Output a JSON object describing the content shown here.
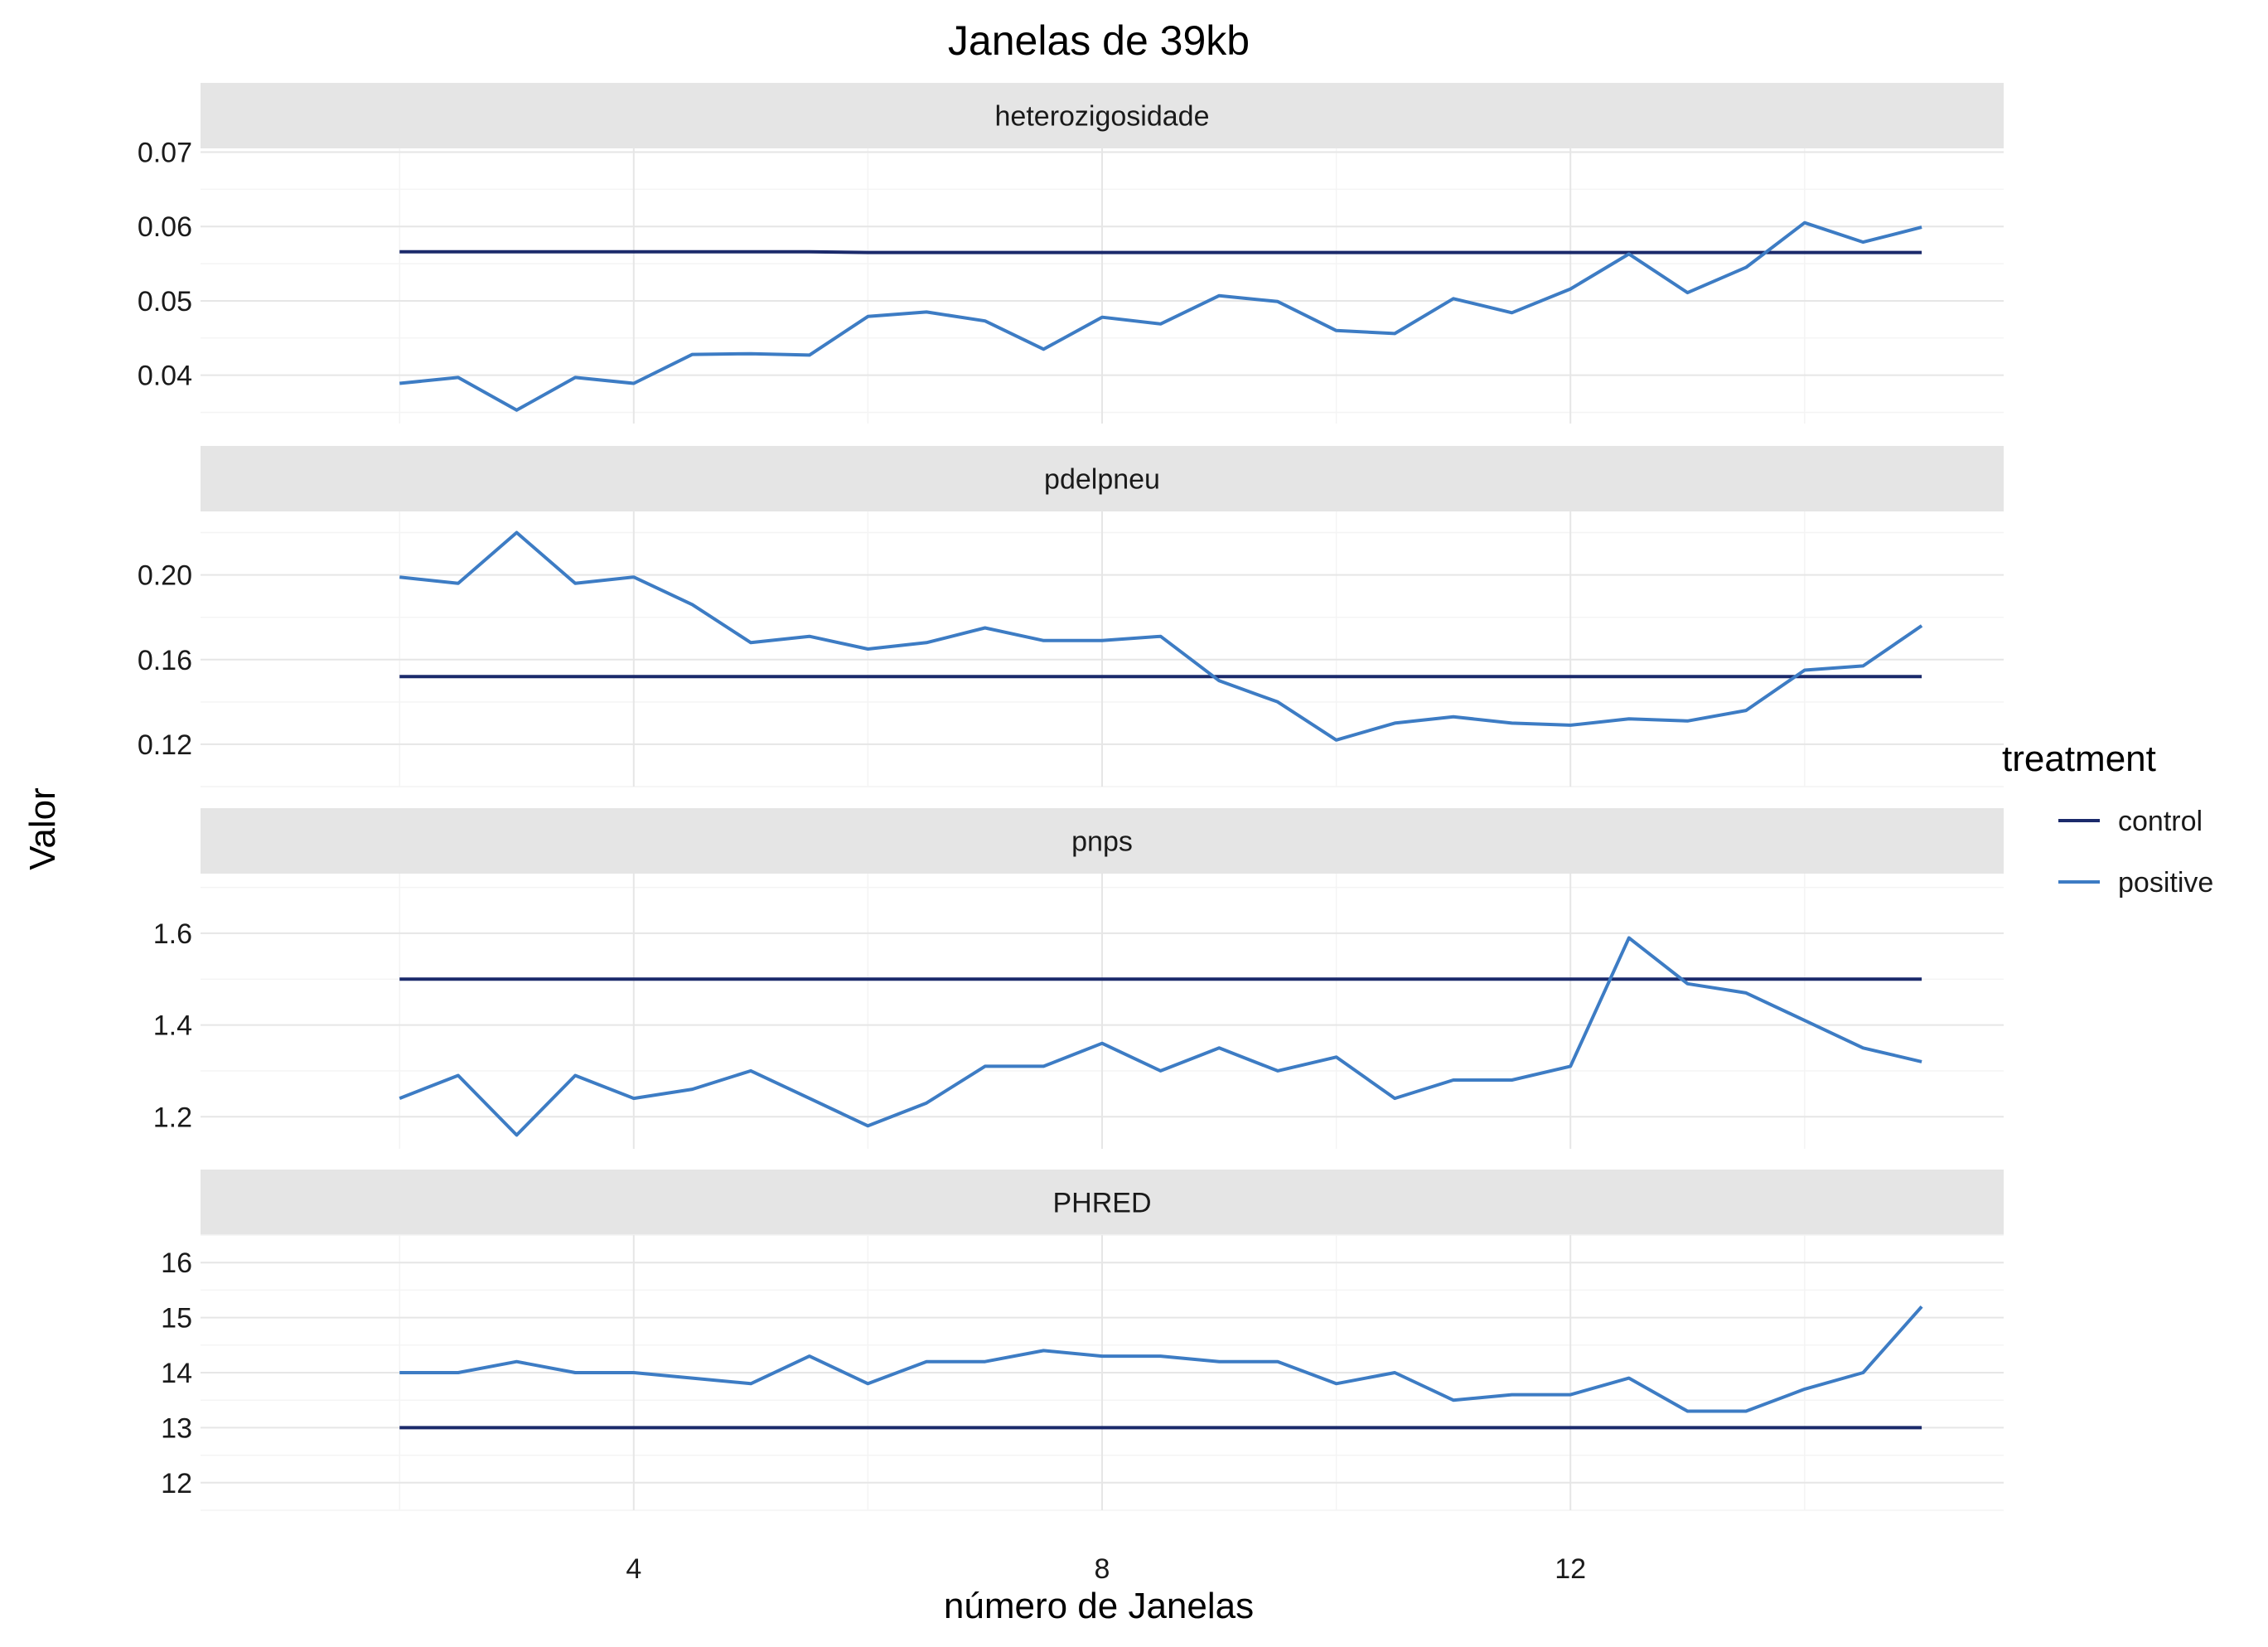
{
  "chart_data": {
    "type": "line",
    "title": "Janelas de 39kb",
    "xlabel": "número de Janelas",
    "ylabel": "Valor",
    "xlim": [
      0.3,
      15.7
    ],
    "xticks": [
      4,
      8,
      12
    ],
    "legend": {
      "title": "treatment",
      "position": "right",
      "entries": [
        {
          "label": "control",
          "color": "#1b2a6b"
        },
        {
          "label": "positive",
          "color": "#3d7cc4"
        }
      ]
    },
    "x": [
      2,
      2.5,
      3,
      3.5,
      4,
      4.5,
      5,
      5.5,
      6,
      6.5,
      7,
      7.5,
      8,
      8.5,
      9,
      9.5,
      10,
      10.5,
      11,
      11.5,
      12,
      12.5,
      13,
      13.5,
      14,
      14.5,
      15
    ],
    "panels": [
      {
        "strip": "heterozigosidade",
        "ylim": [
          0.0335,
          0.0705
        ],
        "yticks": [
          0.04,
          0.05,
          0.06,
          0.07
        ],
        "ytick_labels": [
          "0.04",
          "0.05",
          "0.06",
          "0.07"
        ],
        "series": [
          {
            "name": "control",
            "values": [
              0.0566,
              0.0566,
              0.0566,
              0.0566,
              0.0566,
              0.0566,
              0.0566,
              0.0566,
              0.0565,
              0.0565,
              0.0565,
              0.0565,
              0.0565,
              0.0565,
              0.0565,
              0.0565,
              0.0565,
              0.0565,
              0.0565,
              0.0565,
              0.0565,
              0.0565,
              0.0565,
              0.0565,
              0.0565,
              0.0565,
              0.0565
            ]
          },
          {
            "name": "positive",
            "values": [
              0.0389,
              0.0397,
              0.0353,
              0.0397,
              0.0389,
              0.0428,
              0.0429,
              0.0427,
              0.0479,
              0.0485,
              0.0473,
              0.0435,
              0.0478,
              0.0469,
              0.0507,
              0.0499,
              0.046,
              0.0456,
              0.0503,
              0.0484,
              0.0516,
              0.0563,
              0.0511,
              0.0545,
              0.0605,
              0.0579,
              0.0599
            ]
          }
        ]
      },
      {
        "strip": "pdelpneu",
        "ylim": [
          0.1,
          0.23
        ],
        "yticks": [
          0.12,
          0.16,
          0.2
        ],
        "ytick_labels": [
          "0.12",
          "0.16",
          "0.20"
        ],
        "series": [
          {
            "name": "control",
            "values": [
              0.152,
              0.152,
              0.152,
              0.152,
              0.152,
              0.152,
              0.152,
              0.152,
              0.152,
              0.152,
              0.152,
              0.152,
              0.152,
              0.152,
              0.152,
              0.152,
              0.152,
              0.152,
              0.152,
              0.152,
              0.152,
              0.152,
              0.152,
              0.152,
              0.152,
              0.152,
              0.152
            ]
          },
          {
            "name": "positive",
            "values": [
              0.199,
              0.196,
              0.22,
              0.196,
              0.199,
              0.186,
              0.168,
              0.171,
              0.165,
              0.168,
              0.175,
              0.169,
              0.169,
              0.171,
              0.15,
              0.14,
              0.122,
              0.13,
              0.133,
              0.13,
              0.129,
              0.132,
              0.131,
              0.136,
              0.155,
              0.157,
              0.176
            ]
          }
        ]
      },
      {
        "strip": "pnps",
        "ylim": [
          1.13,
          1.73
        ],
        "yticks": [
          1.2,
          1.4,
          1.6
        ],
        "ytick_labels": [
          "1.2",
          "1.4",
          "1.6"
        ],
        "series": [
          {
            "name": "control",
            "values": [
              1.5,
              1.5,
              1.5,
              1.5,
              1.5,
              1.5,
              1.5,
              1.5,
              1.5,
              1.5,
              1.5,
              1.5,
              1.5,
              1.5,
              1.5,
              1.5,
              1.5,
              1.5,
              1.5,
              1.5,
              1.5,
              1.5,
              1.5,
              1.5,
              1.5,
              1.5,
              1.5
            ]
          },
          {
            "name": "positive",
            "values": [
              1.24,
              1.29,
              1.16,
              1.29,
              1.24,
              1.26,
              1.3,
              1.24,
              1.18,
              1.23,
              1.31,
              1.31,
              1.36,
              1.3,
              1.35,
              1.3,
              1.33,
              1.24,
              1.28,
              1.28,
              1.31,
              1.59,
              1.49,
              1.47,
              1.41,
              1.35,
              1.32
            ]
          }
        ]
      },
      {
        "strip": "PHRED",
        "ylim": [
          11.5,
          16.5
        ],
        "yticks": [
          12,
          13,
          14,
          15,
          16
        ],
        "ytick_labels": [
          "12",
          "13",
          "14",
          "15",
          "16"
        ],
        "series": [
          {
            "name": "control",
            "values": [
              13.0,
              13.0,
              13.0,
              13.0,
              13.0,
              13.0,
              13.0,
              13.0,
              13.0,
              13.0,
              13.0,
              13.0,
              13.0,
              13.0,
              13.0,
              13.0,
              13.0,
              13.0,
              13.0,
              13.0,
              13.0,
              13.0,
              13.0,
              13.0,
              13.0,
              13.0,
              13.0
            ]
          },
          {
            "name": "positive",
            "values": [
              14.0,
              14.0,
              14.2,
              14.0,
              14.0,
              13.9,
              13.8,
              14.3,
              13.8,
              14.2,
              14.2,
              14.4,
              14.3,
              14.3,
              14.2,
              14.2,
              13.8,
              14.0,
              13.5,
              13.6,
              13.6,
              13.9,
              13.3,
              13.3,
              13.7,
              14.0,
              15.2
            ]
          }
        ]
      }
    ]
  }
}
